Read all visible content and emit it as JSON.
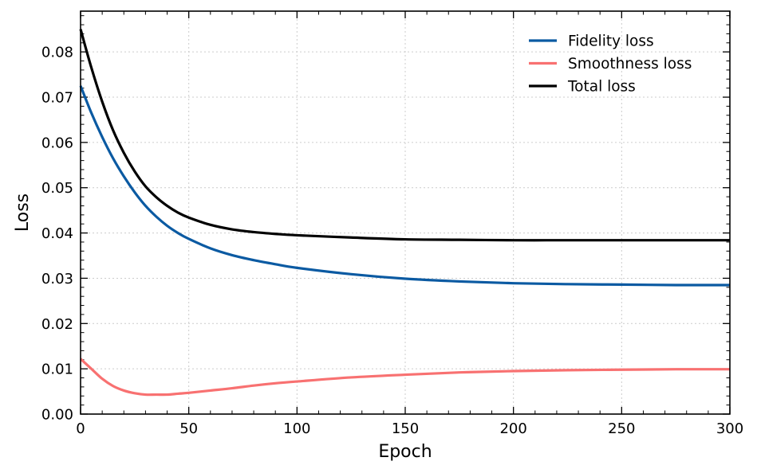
{
  "chart_data": {
    "type": "line",
    "title": "",
    "xlabel": "Epoch",
    "ylabel": "Loss",
    "xlim": [
      0,
      300
    ],
    "ylim": [
      0,
      0.089
    ],
    "xticks": [
      "0",
      "50",
      "100",
      "150",
      "200",
      "250",
      "300"
    ],
    "yticks": [
      "0.00",
      "0.01",
      "0.02",
      "0.03",
      "0.04",
      "0.05",
      "0.06",
      "0.07",
      "0.08"
    ],
    "grid": true,
    "legend_position": "top-right",
    "x": [
      0,
      5,
      10,
      15,
      20,
      25,
      30,
      35,
      40,
      45,
      50,
      60,
      70,
      80,
      90,
      100,
      125,
      150,
      175,
      200,
      225,
      250,
      275,
      300
    ],
    "series": [
      {
        "name": "Fidelity loss",
        "color": "#0b5aa2",
        "values": [
          0.0725,
          0.0665,
          0.0612,
          0.0565,
          0.0525,
          0.049,
          0.046,
          0.0436,
          0.0416,
          0.04,
          0.0387,
          0.0366,
          0.0351,
          0.034,
          0.0331,
          0.0323,
          0.0309,
          0.0299,
          0.0293,
          0.0289,
          0.0287,
          0.0286,
          0.0285,
          0.0285
        ]
      },
      {
        "name": "Smoothness loss",
        "color": "#f87171",
        "values": [
          0.0122,
          0.01,
          0.0078,
          0.0062,
          0.0052,
          0.0046,
          0.0043,
          0.0043,
          0.0043,
          0.0045,
          0.0047,
          0.0052,
          0.0057,
          0.0063,
          0.0068,
          0.0072,
          0.0081,
          0.0087,
          0.0092,
          0.0095,
          0.0097,
          0.0098,
          0.0099,
          0.0099
        ]
      },
      {
        "name": "Total loss",
        "color": "#000000",
        "values": [
          0.085,
          0.0765,
          0.069,
          0.0627,
          0.0577,
          0.0536,
          0.0503,
          0.0479,
          0.046,
          0.0445,
          0.0434,
          0.0418,
          0.0408,
          0.0402,
          0.0398,
          0.0395,
          0.039,
          0.0386,
          0.0385,
          0.0384,
          0.0384,
          0.0384,
          0.0384,
          0.0384
        ]
      }
    ]
  }
}
